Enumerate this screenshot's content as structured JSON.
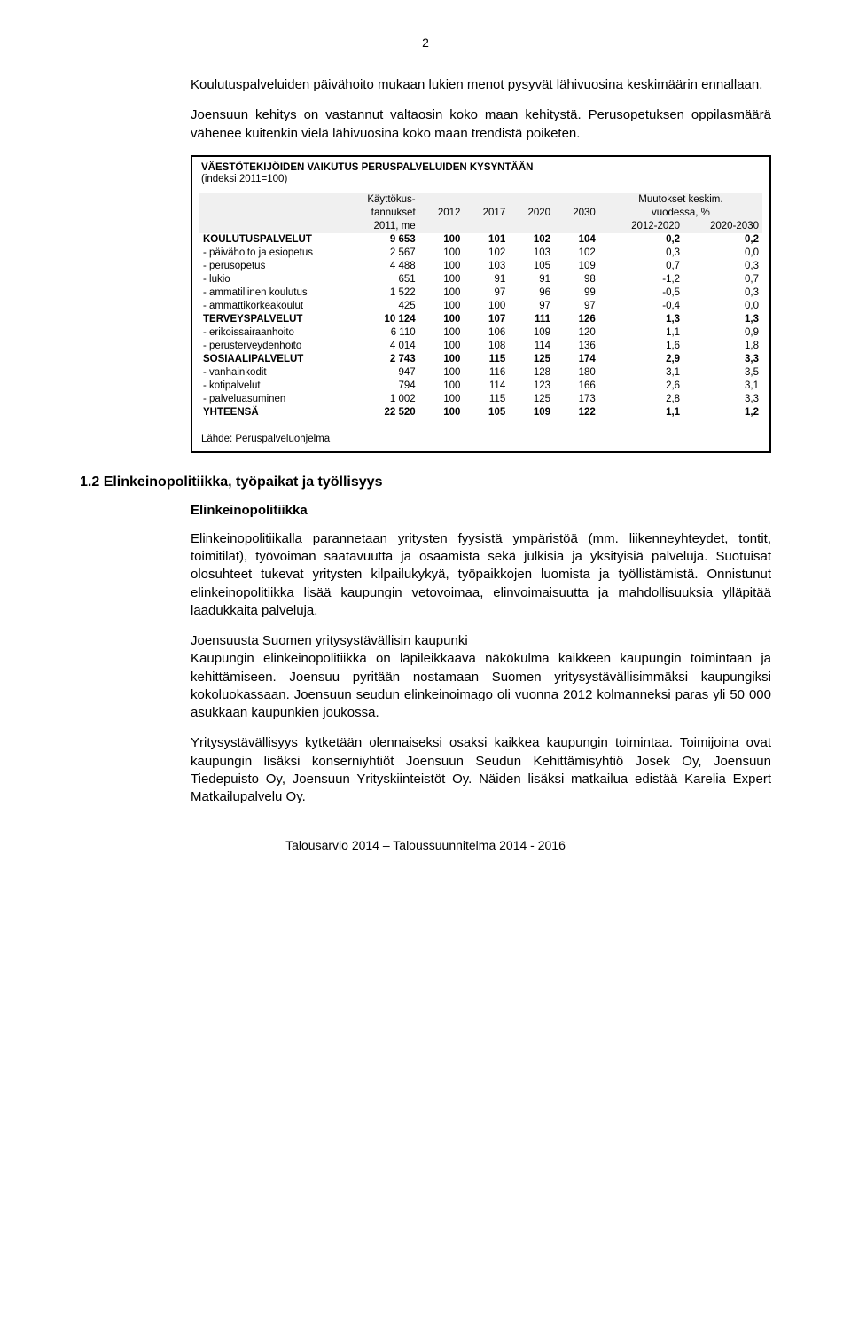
{
  "page_number": "2",
  "intro_p1": "Koulutuspalveluiden päivähoito mukaan lukien menot pysyvät lähivuosina keskimäärin ennallaan.",
  "intro_p2": "Joensuun kehitys on vastannut valtaosin koko maan kehitystä. Perusopetuksen oppilasmäärä vähenee kuitenkin vielä lähivuosina koko maan trendistä poiketen.",
  "table": {
    "title": "VÄESTÖTEKIJÖIDEN VAIKUTUS PERUSPALVELUIDEN KYSYNTÄÄN",
    "subtitle": "(indeksi 2011=100)",
    "header": {
      "col_cost_line1": "Käyttökus-",
      "col_cost_line2": "tannukset",
      "col_cost_line3": "2011, me",
      "col_2012": "2012",
      "col_2017": "2017",
      "col_2020": "2020",
      "col_2030": "2030",
      "col_change_line1": "Muutokset keskim.",
      "col_change_line2": "vuodessa, %",
      "col_change_a": "2012-2020",
      "col_change_b": "2020-2030"
    },
    "rows": [
      {
        "label": "KOULUTUSPALVELUT",
        "cost": "9 653",
        "v2012": "100",
        "v2017": "101",
        "v2020": "102",
        "v2030": "104",
        "ca": "0,2",
        "cb": "0,2",
        "bold": true
      },
      {
        "label": "- päivähoito ja esiopetus",
        "cost": "2 567",
        "v2012": "100",
        "v2017": "102",
        "v2020": "103",
        "v2030": "102",
        "ca": "0,3",
        "cb": "0,0"
      },
      {
        "label": "- perusopetus",
        "cost": "4 488",
        "v2012": "100",
        "v2017": "103",
        "v2020": "105",
        "v2030": "109",
        "ca": "0,7",
        "cb": "0,3"
      },
      {
        "label": "- lukio",
        "cost": "651",
        "v2012": "100",
        "v2017": "91",
        "v2020": "91",
        "v2030": "98",
        "ca": "-1,2",
        "cb": "0,7"
      },
      {
        "label": "- ammatillinen koulutus",
        "cost": "1 522",
        "v2012": "100",
        "v2017": "97",
        "v2020": "96",
        "v2030": "99",
        "ca": "-0,5",
        "cb": "0,3"
      },
      {
        "label": "- ammattikorkeakoulut",
        "cost": "425",
        "v2012": "100",
        "v2017": "100",
        "v2020": "97",
        "v2030": "97",
        "ca": "-0,4",
        "cb": "0,0"
      },
      {
        "label": "TERVEYSPALVELUT",
        "cost": "10 124",
        "v2012": "100",
        "v2017": "107",
        "v2020": "111",
        "v2030": "126",
        "ca": "1,3",
        "cb": "1,3",
        "bold": true
      },
      {
        "label": "- erikoissairaanhoito",
        "cost": "6 110",
        "v2012": "100",
        "v2017": "106",
        "v2020": "109",
        "v2030": "120",
        "ca": "1,1",
        "cb": "0,9"
      },
      {
        "label": "- perusterveydenhoito",
        "cost": "4 014",
        "v2012": "100",
        "v2017": "108",
        "v2020": "114",
        "v2030": "136",
        "ca": "1,6",
        "cb": "1,8"
      },
      {
        "label": "SOSIAALIPALVELUT",
        "cost": "2 743",
        "v2012": "100",
        "v2017": "115",
        "v2020": "125",
        "v2030": "174",
        "ca": "2,9",
        "cb": "3,3",
        "bold": true
      },
      {
        "label": "- vanhainkodit",
        "cost": "947",
        "v2012": "100",
        "v2017": "116",
        "v2020": "128",
        "v2030": "180",
        "ca": "3,1",
        "cb": "3,5"
      },
      {
        "label": "- kotipalvelut",
        "cost": "794",
        "v2012": "100",
        "v2017": "114",
        "v2020": "123",
        "v2030": "166",
        "ca": "2,6",
        "cb": "3,1"
      },
      {
        "label": "- palveluasuminen",
        "cost": "1 002",
        "v2012": "100",
        "v2017": "115",
        "v2020": "125",
        "v2030": "173",
        "ca": "2,8",
        "cb": "3,3"
      },
      {
        "label": "YHTEENSÄ",
        "cost": "22 520",
        "v2012": "100",
        "v2017": "105",
        "v2020": "109",
        "v2030": "122",
        "ca": "1,1",
        "cb": "1,2",
        "bold": true
      }
    ],
    "source": "Lähde: Peruspalveluohjelma",
    "col_widths": [
      "29%",
      "10%",
      "8%",
      "8%",
      "8%",
      "8%",
      "15%",
      "14%"
    ],
    "border_color": "#000000",
    "header_bg": "#f0f0f0",
    "font_size_pt": 9
  },
  "section_head": "1.2 Elinkeinopolitiikka, työpaikat ja työllisyys",
  "subhead": "Elinkeinopolitiikka",
  "p3": "Elinkeinopolitiikalla parannetaan yritysten fyysistä ympäristöä (mm. liikenneyhteydet, tontit, toimitilat), työvoiman saatavuutta ja osaamista sekä julkisia ja yksityisiä palveluja. Suotuisat olosuhteet tukevat yritysten kilpailukykyä, työpaikkojen luomista ja työllistämistä. Onnistunut elinkeinopolitiikka lisää kaupungin vetovoimaa, elinvoimaisuutta ja mahdollisuuksia ylläpitää laadukkaita palveluja.",
  "p4_title": "Joensuusta Suomen yritysystävällisin kaupunki",
  "p4_body": "Kaupungin elinkeinopolitiikka on läpileikkaava näkökulma kaikkeen kaupungin toimintaan ja kehittämiseen. Joensuu pyritään nostamaan Suomen yritysystävällisimmäksi kaupungiksi kokoluokassaan. Joensuun seudun elinkeinoimago oli vuonna 2012 kolmanneksi paras yli 50 000 asukkaan kaupunkien joukossa.",
  "p5": "Yritysystävällisyys kytketään olennaiseksi osaksi kaikkea kaupungin toimintaa. Toimijoina ovat kaupungin lisäksi konserniyhtiöt Joensuun Seudun Kehittämisyhtiö Josek Oy, Joensuun Tiedepuisto Oy, Joensuun Yrityskiinteistöt Oy. Näiden lisäksi matkailua edistää Karelia Expert Matkailupalvelu Oy.",
  "footer": "Talousarvio 2014 – Taloussuunnitelma 2014 - 2016"
}
